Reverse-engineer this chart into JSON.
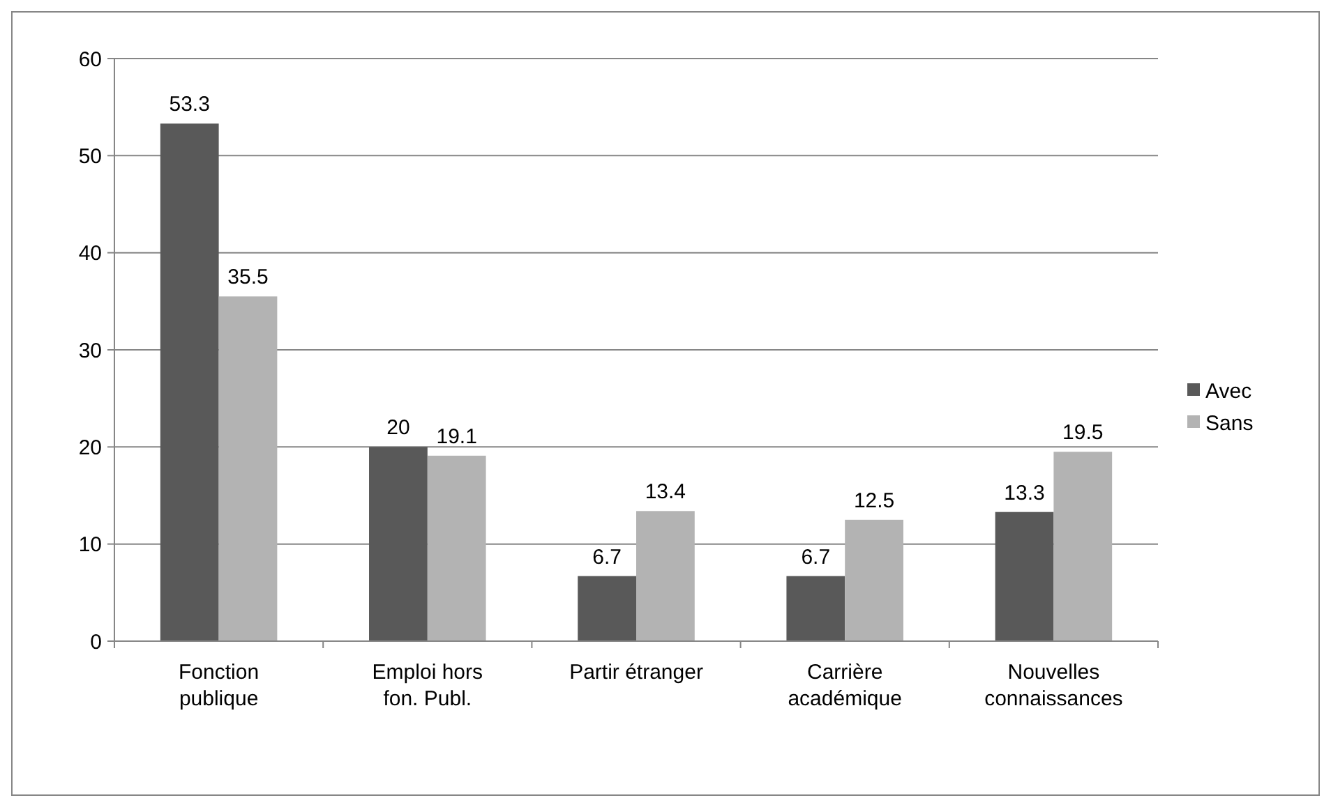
{
  "chart_data": {
    "type": "bar",
    "categories": [
      "Fonction\npublique",
      "Emploi hors\nfon. Publ.",
      "Partir étranger",
      "Carrière\nacadémique",
      "Nouvelles\nconnaissances"
    ],
    "series": [
      {
        "name": "Avec",
        "color": "#595959",
        "values": [
          53.3,
          20,
          6.7,
          6.7,
          13.3
        ]
      },
      {
        "name": "Sans",
        "color": "#b3b3b3",
        "values": [
          35.5,
          19.1,
          13.4,
          12.5,
          19.5
        ]
      }
    ],
    "ylim": [
      0,
      60
    ],
    "yticks": [
      0,
      10,
      20,
      30,
      40,
      50,
      60
    ],
    "grid": "y",
    "legend": "right",
    "data_labels": true
  }
}
